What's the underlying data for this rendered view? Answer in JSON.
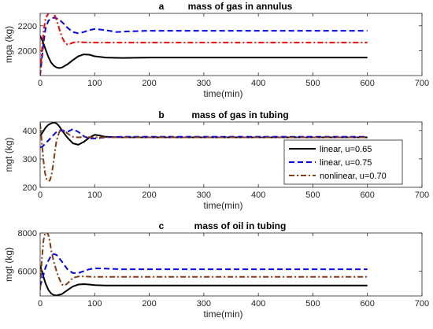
{
  "chart_data": [
    {
      "type": "line",
      "title_letter": "a",
      "title": "mass of gas in annulus",
      "xlabel": "time(min)",
      "ylabel": "mga (kg)",
      "xlim": [
        0,
        700
      ],
      "ylim": [
        1800,
        2300
      ],
      "xticks": [
        0,
        100,
        200,
        300,
        400,
        500,
        600,
        700
      ],
      "yticks": [
        2000,
        2200
      ],
      "grid": false,
      "legend": null,
      "series": [
        {
          "color": "#000000",
          "style": "solid",
          "x": [
            0,
            5,
            10,
            15,
            20,
            25,
            30,
            35,
            40,
            50,
            60,
            70,
            80,
            90,
            100,
            120,
            150,
            200,
            300,
            400,
            500,
            600
          ],
          "y": [
            2120,
            2070,
            2010,
            1950,
            1905,
            1880,
            1865,
            1860,
            1865,
            1890,
            1925,
            1955,
            1970,
            1968,
            1955,
            1945,
            1942,
            1945,
            1945,
            1945,
            1945,
            1945
          ]
        },
        {
          "color": "#0000ff",
          "style": "dashed",
          "x": [
            0,
            3,
            6,
            10,
            15,
            20,
            25,
            30,
            35,
            40,
            45,
            50,
            60,
            70,
            80,
            90,
            100,
            120,
            140,
            160,
            200,
            250,
            300,
            400,
            500,
            600
          ],
          "y": [
            1800,
            1930,
            2060,
            2180,
            2240,
            2260,
            2265,
            2260,
            2250,
            2230,
            2210,
            2185,
            2150,
            2140,
            2150,
            2165,
            2175,
            2165,
            2150,
            2155,
            2160,
            2160,
            2160,
            2160,
            2160,
            2160
          ]
        },
        {
          "color": "#ff0000",
          "style": "dashdot",
          "x": [
            0,
            3,
            6,
            10,
            15,
            20,
            25,
            30,
            35,
            40,
            45,
            50,
            55,
            60,
            70,
            80,
            100,
            150,
            200,
            300,
            400,
            500,
            600
          ],
          "y": [
            1800,
            1990,
            2150,
            2260,
            2300,
            2310,
            2300,
            2250,
            2175,
            2110,
            2065,
            2050,
            2055,
            2065,
            2070,
            2068,
            2065,
            2065,
            2065,
            2065,
            2065,
            2065,
            2065
          ]
        }
      ]
    },
    {
      "type": "line",
      "title_letter": "b",
      "title": "mass of gas in tubing",
      "xlabel": "time(min)",
      "ylabel": "mgt (kg)",
      "xlim": [
        0,
        700
      ],
      "ylim": [
        200,
        430
      ],
      "xticks": [
        0,
        100,
        200,
        300,
        400,
        500,
        600,
        700
      ],
      "yticks": [
        200,
        300,
        400
      ],
      "grid": false,
      "legend": "right",
      "series": [
        {
          "name": "linear, u=0.65",
          "color": "#000000",
          "style": "solid",
          "x": [
            0,
            5,
            10,
            15,
            20,
            25,
            30,
            35,
            40,
            50,
            60,
            70,
            80,
            90,
            100,
            110,
            120,
            150,
            200,
            300,
            400,
            500,
            600
          ],
          "y": [
            380,
            395,
            410,
            420,
            425,
            428,
            425,
            415,
            400,
            375,
            355,
            350,
            360,
            375,
            385,
            382,
            378,
            376,
            376,
            376,
            376,
            376,
            376
          ]
        },
        {
          "name": "linear, u=0.75",
          "color": "#0000ff",
          "style": "dashed",
          "x": [
            0,
            5,
            10,
            15,
            20,
            25,
            30,
            35,
            40,
            50,
            60,
            70,
            80,
            90,
            100,
            120,
            150,
            200,
            300,
            400,
            500,
            600
          ],
          "y": [
            340,
            345,
            355,
            365,
            375,
            385,
            395,
            400,
            400,
            395,
            405,
            395,
            380,
            372,
            372,
            376,
            378,
            378,
            378,
            378,
            378,
            378
          ]
        },
        {
          "name": "nonlinear, u=0.70",
          "color": "#8b3a0f",
          "style": "dashdot",
          "x": [
            0,
            3,
            6,
            9,
            12,
            15,
            18,
            21,
            24,
            27,
            30,
            35,
            40,
            45,
            50,
            55,
            60,
            70,
            80,
            100,
            150,
            200,
            300,
            400,
            500,
            600
          ],
          "y": [
            425,
            360,
            295,
            250,
            228,
            222,
            225,
            245,
            280,
            325,
            365,
            395,
            403,
            398,
            390,
            383,
            378,
            376,
            377,
            376,
            376,
            376,
            376,
            376,
            376,
            376
          ]
        }
      ]
    },
    {
      "type": "line",
      "title_letter": "c",
      "title": "mass of oil in tubing",
      "xlabel": "time(min)",
      "ylabel": "mgt (kg)",
      "xlim": [
        0,
        700
      ],
      "ylim": [
        4700,
        8000
      ],
      "xticks": [
        0,
        100,
        200,
        300,
        400,
        500,
        600,
        700
      ],
      "yticks": [
        6000,
        8000
      ],
      "grid": false,
      "legend": null,
      "series": [
        {
          "color": "#000000",
          "style": "solid",
          "x": [
            0,
            5,
            10,
            15,
            20,
            25,
            30,
            40,
            50,
            60,
            70,
            80,
            90,
            100,
            120,
            150,
            200,
            300,
            400,
            500,
            600
          ],
          "y": [
            6300,
            5800,
            5350,
            5020,
            4830,
            4750,
            4720,
            4800,
            5000,
            5200,
            5300,
            5320,
            5300,
            5270,
            5250,
            5250,
            5250,
            5250,
            5250,
            5250,
            5250
          ]
        },
        {
          "color": "#0000ff",
          "style": "dashed",
          "x": [
            0,
            5,
            10,
            15,
            20,
            25,
            30,
            40,
            50,
            60,
            70,
            80,
            90,
            100,
            120,
            150,
            200,
            300,
            400,
            500,
            600
          ],
          "y": [
            5200,
            5700,
            6200,
            6550,
            6800,
            6900,
            6850,
            6500,
            6100,
            5900,
            5900,
            6000,
            6100,
            6150,
            6130,
            6100,
            6100,
            6100,
            6100,
            6100,
            6100
          ]
        },
        {
          "color": "#8b3a0f",
          "style": "dashdot",
          "x": [
            0,
            3,
            6,
            9,
            12,
            15,
            18,
            21,
            25,
            30,
            35,
            40,
            45,
            50,
            55,
            60,
            70,
            80,
            100,
            150,
            200,
            300,
            400,
            500,
            600
          ],
          "y": [
            5000,
            6600,
            7600,
            8000,
            8050,
            7900,
            7500,
            7000,
            6500,
            6000,
            5600,
            5300,
            5250,
            5350,
            5500,
            5650,
            5720,
            5720,
            5700,
            5700,
            5700,
            5700,
            5700,
            5700,
            5700
          ]
        }
      ]
    }
  ]
}
